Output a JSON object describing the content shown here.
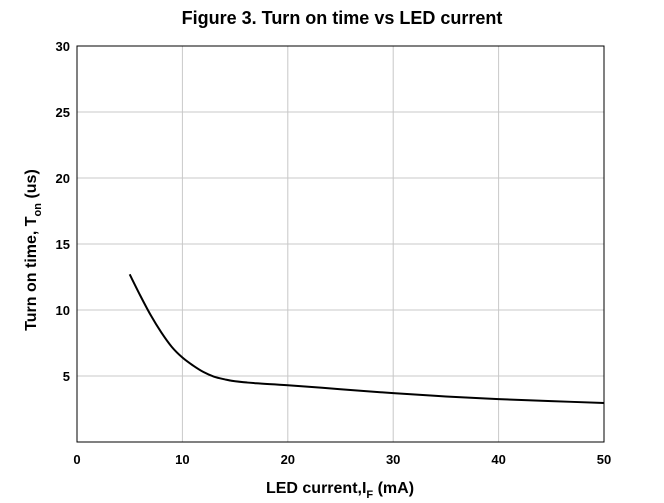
{
  "chart_data": {
    "type": "line",
    "title": "Figure 3. Turn on time  vs LED current",
    "xlabel": {
      "main": "LED current,I",
      "sub": "F",
      "unit": " (mA)"
    },
    "ylabel": {
      "main": "Turn on time, T",
      "sub": "on",
      "unit": " (us)"
    },
    "xlim": [
      0,
      50
    ],
    "ylim": [
      0,
      30
    ],
    "xticks": [
      0,
      10,
      20,
      30,
      40,
      50
    ],
    "yticks": [
      5,
      10,
      15,
      20,
      25,
      30
    ],
    "grid": true,
    "series": [
      {
        "color": "#000000",
        "x": [
          5,
          6,
          7,
          8,
          9,
          10,
          11,
          12,
          13,
          14,
          15,
          17,
          20,
          25,
          30,
          35,
          40,
          45,
          50
        ],
        "y": [
          12.7,
          11.1,
          9.6,
          8.3,
          7.2,
          6.4,
          5.8,
          5.3,
          4.95,
          4.75,
          4.6,
          4.45,
          4.3,
          4.0,
          3.7,
          3.45,
          3.25,
          3.1,
          2.95
        ]
      }
    ]
  }
}
